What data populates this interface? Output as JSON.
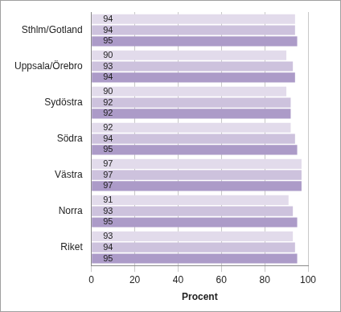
{
  "chart_data": {
    "type": "bar",
    "orientation": "horizontal",
    "categories": [
      "Sthlm/Gotland",
      "Uppsala/Örebro",
      "Sydöstra",
      "Södra",
      "Västra",
      "Norra",
      "Riket"
    ],
    "series": [
      {
        "color": "#e2dbeb",
        "values": [
          94,
          90,
          90,
          92,
          97,
          91,
          93
        ]
      },
      {
        "color": "#cdc2dd",
        "values": [
          94,
          93,
          92,
          94,
          97,
          93,
          94
        ]
      },
      {
        "color": "#ac9bc8",
        "values": [
          95,
          94,
          92,
          95,
          97,
          95,
          95
        ]
      }
    ],
    "xlabel": "Procent",
    "xlim": [
      0,
      100
    ],
    "xticks": [
      0,
      20,
      40,
      60,
      80,
      100
    ],
    "grid": true,
    "data_labels": true
  }
}
